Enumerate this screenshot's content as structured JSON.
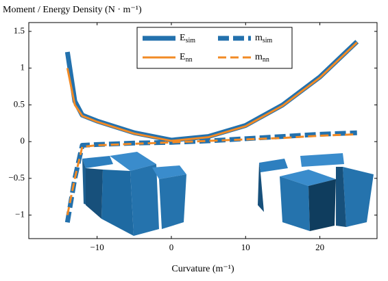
{
  "chart_data": {
    "type": "line",
    "title": "Moment / Energy Density (N · m⁻¹)",
    "x_label": "Curvature (m⁻¹)",
    "x": [
      -14,
      -13,
      -12,
      -10,
      -5,
      0,
      5,
      10,
      15,
      20,
      25
    ],
    "series": [
      {
        "name": "Esim",
        "color": "#2371ad",
        "dashed": false,
        "values": [
          1.22,
          0.55,
          0.36,
          0.28,
          0.12,
          0.02,
          0.07,
          0.22,
          0.5,
          0.88,
          1.36
        ]
      },
      {
        "name": "msim",
        "color": "#2371ad",
        "dashed": true,
        "values": [
          -1.1,
          -0.5,
          -0.05,
          -0.04,
          -0.02,
          -0.01,
          0.01,
          0.04,
          0.07,
          0.1,
          0.12
        ]
      },
      {
        "name": "Enn",
        "color": "#f28a24",
        "dashed": false,
        "values": [
          1.0,
          0.5,
          0.35,
          0.27,
          0.11,
          0.01,
          0.06,
          0.21,
          0.49,
          0.87,
          1.35
        ]
      },
      {
        "name": "mnn",
        "color": "#f28a24",
        "dashed": true,
        "values": [
          -1.0,
          -0.5,
          -0.07,
          -0.05,
          -0.03,
          -0.01,
          0.01,
          0.03,
          0.05,
          0.08,
          0.1
        ]
      }
    ],
    "xlim": [
      -19.2,
      27.7
    ],
    "ylim": [
      -1.32,
      1.62
    ],
    "xticks": [
      {
        "value": -10,
        "label": "−10"
      },
      0,
      10,
      20
    ],
    "yticks": [
      {
        "value": -1,
        "label": "−1"
      },
      {
        "value": -0.5,
        "label": "−0.5"
      },
      0,
      0.5,
      1,
      1.5
    ]
  }
}
